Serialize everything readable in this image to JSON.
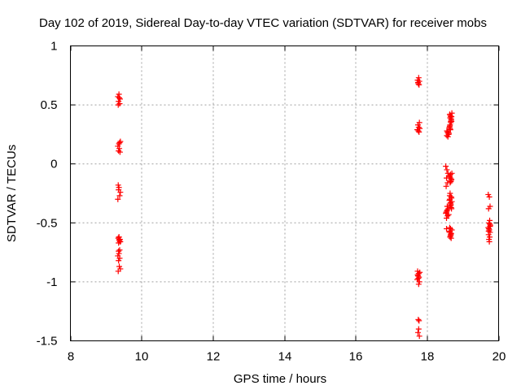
{
  "chart_data": {
    "type": "scatter",
    "title": "Day 102 of 2019, Sidereal Day-to-day VTEC variation (SDTVAR) for receiver mobs",
    "xlabel": "GPS time / hours",
    "ylabel": "SDTVAR / TECUs",
    "xlim": [
      8,
      20
    ],
    "ylim": [
      -1.5,
      1
    ],
    "xticks": [
      8,
      10,
      12,
      14,
      16,
      18,
      20
    ],
    "xtick_labels": [
      "8",
      "10",
      "12",
      "14",
      "16",
      "18",
      "20"
    ],
    "yticks": [
      -1.5,
      -1,
      -0.5,
      0,
      0.5,
      1
    ],
    "ytick_labels": [
      "-1.5",
      "-1",
      "-0.5",
      "0",
      "0.5",
      "1"
    ],
    "grid": true,
    "marker": "+",
    "color": "#ff0000",
    "series": [
      {
        "name": "SDTVAR",
        "x": [
          9.33,
          9.36,
          9.39,
          9.35,
          9.38,
          9.34,
          9.37,
          9.4,
          9.36,
          9.33,
          9.38,
          9.35,
          9.37,
          9.39,
          9.34,
          9.36,
          9.4,
          9.35,
          9.38,
          9.33,
          9.36,
          9.39,
          9.34,
          9.37,
          9.4,
          9.35,
          9.38,
          9.36,
          9.33,
          9.38,
          9.35,
          9.37,
          9.4,
          9.34,
          9.36,
          9.39,
          9.37,
          9.35,
          17.73,
          17.76,
          17.78,
          17.75,
          17.77,
          17.74,
          17.72,
          17.76,
          17.79,
          17.74,
          17.77,
          17.75,
          17.78,
          17.73,
          17.76,
          17.74,
          17.79,
          17.77,
          17.75,
          17.72,
          17.78,
          17.76,
          17.73,
          17.77,
          17.75,
          17.76,
          17.74,
          17.78,
          18.52,
          18.55,
          18.58,
          18.54,
          18.57,
          18.53,
          18.56,
          18.59,
          18.55,
          18.52,
          18.57,
          18.54,
          18.6,
          18.56,
          18.53,
          18.58,
          18.61,
          18.55,
          18.64,
          18.66,
          18.68,
          18.63,
          18.67,
          18.65,
          18.69,
          18.64,
          18.66,
          18.62,
          18.67,
          18.65,
          18.68,
          18.63,
          18.66,
          18.64,
          18.69,
          18.62,
          18.65,
          18.67,
          18.63,
          18.68,
          18.66,
          18.64,
          18.65,
          18.67,
          18.63,
          18.69,
          18.66,
          18.64,
          18.62,
          18.68,
          18.65,
          18.67,
          18.63,
          18.66,
          18.64,
          18.68,
          18.65,
          18.63,
          18.67,
          18.66,
          18.64,
          18.62,
          18.69,
          18.65,
          18.67,
          18.63,
          18.66,
          18.64,
          18.58,
          18.55,
          18.6,
          18.57,
          18.54,
          19.71,
          19.74,
          19.76,
          19.72,
          19.75,
          19.73,
          19.77,
          19.71,
          19.74,
          19.76,
          19.72,
          19.75,
          19.73,
          19.74,
          19.76,
          19.72,
          19.75,
          19.73
        ],
        "y": [
          0.57,
          0.59,
          0.55,
          0.53,
          0.51,
          0.5,
          0.56,
          0.19,
          0.17,
          0.15,
          0.18,
          0.11,
          0.13,
          0.1,
          -0.18,
          -0.2,
          -0.24,
          -0.22,
          -0.27,
          -0.3,
          -0.62,
          -0.64,
          -0.63,
          -0.65,
          -0.66,
          -0.67,
          -0.73,
          -0.76,
          -0.78,
          -0.8,
          -0.82,
          -0.87,
          -0.89,
          -0.91,
          -0.62,
          -0.66,
          -0.64,
          -0.74,
          0.71,
          0.73,
          0.7,
          0.68,
          0.67,
          0.69,
          0.29,
          0.31,
          0.3,
          0.33,
          0.27,
          0.28,
          0.35,
          -0.91,
          -0.93,
          -0.95,
          -0.92,
          -0.96,
          -0.97,
          -0.98,
          -1.0,
          -1.02,
          -0.94,
          -1.33,
          -1.32,
          -1.4,
          -1.43,
          -1.46,
          -0.02,
          -0.05,
          -0.08,
          -0.12,
          -0.16,
          -0.19,
          -0.36,
          -0.38,
          -0.4,
          -0.42,
          -0.44,
          -0.46,
          -0.43,
          -0.39,
          -0.41,
          0.23,
          0.26,
          0.28,
          0.33,
          0.36,
          0.4,
          0.42,
          0.38,
          0.41,
          0.43,
          0.39,
          0.35,
          0.31,
          0.37,
          0.29,
          0.36,
          0.32,
          0.4,
          0.3,
          -0.08,
          -0.1,
          -0.12,
          -0.14,
          -0.11,
          -0.13,
          -0.15,
          -0.16,
          -0.09,
          -0.28,
          -0.3,
          -0.32,
          -0.34,
          -0.36,
          -0.31,
          -0.29,
          -0.33,
          -0.37,
          -0.27,
          -0.35,
          -0.25,
          -0.38,
          -0.55,
          -0.57,
          -0.59,
          -0.6,
          -0.62,
          -0.58,
          -0.56,
          -0.61,
          -0.63,
          -0.54,
          -0.6,
          -0.58,
          0.26,
          0.24,
          0.25,
          0.27,
          -0.55,
          -0.26,
          -0.28,
          -0.36,
          -0.38,
          -0.48,
          -0.5,
          -0.52,
          -0.54,
          -0.56,
          -0.58,
          -0.6,
          -0.62,
          -0.64,
          -0.66,
          -0.53,
          -0.57,
          -0.51,
          -0.55
        ]
      }
    ]
  }
}
